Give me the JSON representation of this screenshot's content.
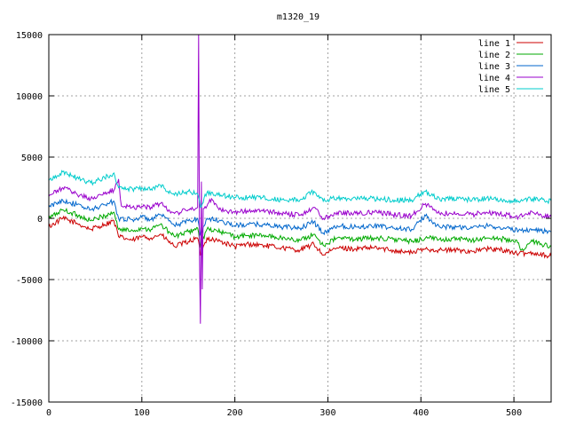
{
  "chart_data": {
    "type": "line",
    "title": "m1320_19",
    "xlabel": "",
    "ylabel": "",
    "xlim": [
      0,
      540
    ],
    "ylim": [
      -15000,
      15000
    ],
    "xticks": [
      0,
      100,
      200,
      300,
      400,
      500
    ],
    "yticks": [
      -15000,
      -10000,
      -5000,
      0,
      5000,
      10000,
      15000
    ],
    "grid": true,
    "legend_position": "top-right",
    "series": [
      {
        "name": "line 1",
        "color": "#cc0000",
        "keypoints": [
          [
            0,
            -700
          ],
          [
            15,
            0
          ],
          [
            30,
            -400
          ],
          [
            45,
            -900
          ],
          [
            60,
            -500
          ],
          [
            70,
            -200
          ],
          [
            75,
            -1500
          ],
          [
            90,
            -1800
          ],
          [
            100,
            -1500
          ],
          [
            110,
            -1600
          ],
          [
            120,
            -1300
          ],
          [
            135,
            -2300
          ],
          [
            150,
            -1900
          ],
          [
            160,
            -1600
          ],
          [
            163,
            -3000
          ],
          [
            170,
            -1600
          ],
          [
            185,
            -1900
          ],
          [
            200,
            -2300
          ],
          [
            215,
            -2100
          ],
          [
            230,
            -2200
          ],
          [
            250,
            -2400
          ],
          [
            270,
            -2600
          ],
          [
            285,
            -2100
          ],
          [
            295,
            -3000
          ],
          [
            310,
            -2400
          ],
          [
            330,
            -2500
          ],
          [
            350,
            -2400
          ],
          [
            370,
            -2600
          ],
          [
            390,
            -2800
          ],
          [
            405,
            -2500
          ],
          [
            420,
            -2600
          ],
          [
            440,
            -2600
          ],
          [
            455,
            -2700
          ],
          [
            470,
            -2500
          ],
          [
            490,
            -2600
          ],
          [
            505,
            -2900
          ],
          [
            520,
            -2800
          ],
          [
            540,
            -3100
          ]
        ]
      },
      {
        "name": "line 2",
        "color": "#00aa00",
        "keypoints": [
          [
            0,
            0
          ],
          [
            15,
            700
          ],
          [
            30,
            300
          ],
          [
            45,
            -200
          ],
          [
            60,
            200
          ],
          [
            70,
            500
          ],
          [
            75,
            -900
          ],
          [
            90,
            -1000
          ],
          [
            100,
            -800
          ],
          [
            110,
            -900
          ],
          [
            120,
            -500
          ],
          [
            135,
            -1500
          ],
          [
            150,
            -1100
          ],
          [
            160,
            -800
          ],
          [
            163,
            -2300
          ],
          [
            170,
            -900
          ],
          [
            185,
            -1100
          ],
          [
            200,
            -1500
          ],
          [
            215,
            -1400
          ],
          [
            230,
            -1400
          ],
          [
            250,
            -1600
          ],
          [
            270,
            -1800
          ],
          [
            285,
            -1300
          ],
          [
            295,
            -2200
          ],
          [
            310,
            -1600
          ],
          [
            330,
            -1700
          ],
          [
            350,
            -1600
          ],
          [
            370,
            -1700
          ],
          [
            390,
            -1900
          ],
          [
            405,
            -1600
          ],
          [
            420,
            -1700
          ],
          [
            440,
            -1700
          ],
          [
            455,
            -1800
          ],
          [
            470,
            -1600
          ],
          [
            490,
            -1700
          ],
          [
            505,
            -2000
          ],
          [
            508,
            -2600
          ],
          [
            520,
            -1900
          ],
          [
            540,
            -2300
          ]
        ]
      },
      {
        "name": "line 3",
        "color": "#0066cc",
        "keypoints": [
          [
            0,
            900
          ],
          [
            15,
            1500
          ],
          [
            30,
            1100
          ],
          [
            45,
            700
          ],
          [
            60,
            1100
          ],
          [
            70,
            1400
          ],
          [
            75,
            0
          ],
          [
            90,
            -100
          ],
          [
            100,
            100
          ],
          [
            110,
            -100
          ],
          [
            120,
            300
          ],
          [
            135,
            -600
          ],
          [
            150,
            -200
          ],
          [
            160,
            0
          ],
          [
            163,
            -1400
          ],
          [
            170,
            0
          ],
          [
            185,
            -200
          ],
          [
            200,
            -600
          ],
          [
            215,
            -500
          ],
          [
            230,
            -500
          ],
          [
            250,
            -700
          ],
          [
            270,
            -800
          ],
          [
            285,
            -300
          ],
          [
            295,
            -1200
          ],
          [
            310,
            -600
          ],
          [
            330,
            -700
          ],
          [
            350,
            -600
          ],
          [
            370,
            -800
          ],
          [
            390,
            -900
          ],
          [
            405,
            200
          ],
          [
            420,
            -700
          ],
          [
            440,
            -700
          ],
          [
            455,
            -800
          ],
          [
            470,
            -600
          ],
          [
            490,
            -800
          ],
          [
            505,
            -1000
          ],
          [
            520,
            -900
          ],
          [
            540,
            -1100
          ]
        ]
      },
      {
        "name": "line 4",
        "color": "#9900cc",
        "keypoints": [
          [
            0,
            1800
          ],
          [
            15,
            2500
          ],
          [
            30,
            2000
          ],
          [
            45,
            1600
          ],
          [
            60,
            2000
          ],
          [
            70,
            2300
          ],
          [
            75,
            3200
          ],
          [
            78,
            1000
          ],
          [
            90,
            900
          ],
          [
            100,
            1000
          ],
          [
            110,
            900
          ],
          [
            120,
            1200
          ],
          [
            135,
            400
          ],
          [
            150,
            700
          ],
          [
            160,
            900
          ],
          [
            161,
            15000
          ],
          [
            162,
            -3000
          ],
          [
            163,
            -8600
          ],
          [
            164,
            3000
          ],
          [
            165,
            -5800
          ],
          [
            166,
            800
          ],
          [
            170,
            1000
          ],
          [
            175,
            1600
          ],
          [
            185,
            700
          ],
          [
            200,
            500
          ],
          [
            215,
            600
          ],
          [
            230,
            600
          ],
          [
            250,
            400
          ],
          [
            270,
            300
          ],
          [
            285,
            900
          ],
          [
            295,
            0
          ],
          [
            310,
            500
          ],
          [
            330,
            400
          ],
          [
            350,
            500
          ],
          [
            370,
            300
          ],
          [
            390,
            200
          ],
          [
            405,
            1200
          ],
          [
            420,
            400
          ],
          [
            440,
            400
          ],
          [
            455,
            300
          ],
          [
            470,
            500
          ],
          [
            490,
            300
          ],
          [
            505,
            100
          ],
          [
            520,
            500
          ],
          [
            540,
            100
          ]
        ]
      },
      {
        "name": "line 5",
        "color": "#00cccc",
        "keypoints": [
          [
            0,
            3100
          ],
          [
            15,
            3800
          ],
          [
            30,
            3300
          ],
          [
            45,
            2900
          ],
          [
            60,
            3300
          ],
          [
            70,
            3700
          ],
          [
            75,
            2500
          ],
          [
            90,
            2400
          ],
          [
            100,
            2500
          ],
          [
            110,
            2400
          ],
          [
            120,
            2700
          ],
          [
            135,
            1900
          ],
          [
            150,
            2200
          ],
          [
            160,
            2000
          ],
          [
            163,
            900
          ],
          [
            170,
            2100
          ],
          [
            185,
            1900
          ],
          [
            200,
            1700
          ],
          [
            215,
            1700
          ],
          [
            230,
            1700
          ],
          [
            250,
            1500
          ],
          [
            270,
            1500
          ],
          [
            285,
            2200
          ],
          [
            295,
            1400
          ],
          [
            310,
            1700
          ],
          [
            330,
            1600
          ],
          [
            350,
            1600
          ],
          [
            370,
            1500
          ],
          [
            390,
            1500
          ],
          [
            405,
            2200
          ],
          [
            420,
            1600
          ],
          [
            440,
            1600
          ],
          [
            455,
            1500
          ],
          [
            470,
            1600
          ],
          [
            490,
            1500
          ],
          [
            505,
            1400
          ],
          [
            520,
            1600
          ],
          [
            540,
            1400
          ]
        ]
      }
    ]
  }
}
